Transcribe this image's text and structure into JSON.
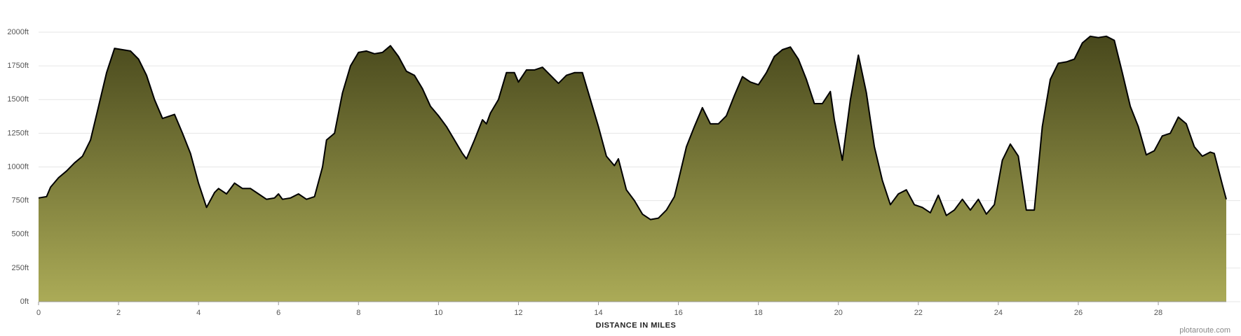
{
  "chart_data": {
    "type": "area",
    "xlabel": "DISTANCE IN MILES",
    "credit": "plotaroute.com",
    "x": [
      0,
      0.2,
      0.3,
      0.5,
      0.7,
      0.9,
      1.1,
      1.3,
      1.5,
      1.7,
      1.9,
      2.1,
      2.3,
      2.5,
      2.7,
      2.9,
      3.1,
      3.4,
      3.6,
      3.8,
      4.0,
      4.2,
      4.4,
      4.5,
      4.7,
      4.9,
      5.1,
      5.3,
      5.5,
      5.7,
      5.9,
      6.0,
      6.1,
      6.3,
      6.5,
      6.7,
      6.9,
      7.1,
      7.2,
      7.4,
      7.6,
      7.8,
      8.0,
      8.2,
      8.4,
      8.6,
      8.8,
      9.0,
      9.2,
      9.4,
      9.6,
      9.8,
      10.0,
      10.2,
      10.4,
      10.6,
      10.7,
      10.9,
      11.1,
      11.2,
      11.3,
      11.5,
      11.7,
      11.9,
      12.0,
      12.2,
      12.4,
      12.6,
      12.8,
      13.0,
      13.2,
      13.4,
      13.6,
      13.8,
      14.0,
      14.2,
      14.4,
      14.5,
      14.7,
      14.9,
      15.1,
      15.3,
      15.5,
      15.7,
      15.9,
      16.0,
      16.2,
      16.4,
      16.6,
      16.8,
      17.0,
      17.2,
      17.4,
      17.6,
      17.8,
      18.0,
      18.2,
      18.4,
      18.6,
      18.8,
      19.0,
      19.2,
      19.4,
      19.6,
      19.8,
      19.9,
      20.1,
      20.3,
      20.5,
      20.7,
      20.9,
      21.1,
      21.3,
      21.5,
      21.7,
      21.9,
      22.1,
      22.3,
      22.5,
      22.7,
      22.9,
      23.1,
      23.3,
      23.5,
      23.7,
      23.9,
      24.1,
      24.3,
      24.5,
      24.7,
      24.9,
      25.1,
      25.3,
      25.5,
      25.7,
      25.9,
      26.1,
      26.3,
      26.5,
      26.7,
      26.9,
      27.1,
      27.3,
      27.5,
      27.7,
      27.9,
      28.1,
      28.3,
      28.5,
      28.7,
      28.9,
      29.1,
      29.3,
      29.4,
      29.6,
      29.7
    ],
    "values": [
      770,
      780,
      850,
      920,
      970,
      1030,
      1080,
      1200,
      1450,
      1700,
      1880,
      1870,
      1860,
      1800,
      1680,
      1500,
      1360,
      1390,
      1250,
      1100,
      880,
      700,
      810,
      840,
      800,
      880,
      840,
      840,
      800,
      760,
      770,
      800,
      760,
      770,
      800,
      760,
      780,
      1000,
      1200,
      1250,
      1550,
      1750,
      1850,
      1860,
      1840,
      1850,
      1900,
      1820,
      1710,
      1680,
      1580,
      1450,
      1380,
      1300,
      1200,
      1100,
      1060,
      1200,
      1350,
      1320,
      1400,
      1500,
      1700,
      1700,
      1630,
      1720,
      1720,
      1740,
      1680,
      1620,
      1680,
      1700,
      1700,
      1500,
      1300,
      1080,
      1010,
      1060,
      830,
      750,
      650,
      610,
      620,
      680,
      780,
      900,
      1150,
      1300,
      1440,
      1320,
      1320,
      1380,
      1530,
      1670,
      1630,
      1610,
      1700,
      1820,
      1870,
      1890,
      1800,
      1650,
      1470,
      1470,
      1560,
      1350,
      1050,
      1500,
      1830,
      1550,
      1150,
      900,
      720,
      800,
      830,
      720,
      700,
      660,
      790,
      640,
      680,
      760,
      680,
      760,
      650,
      720,
      1050,
      1170,
      1080,
      680,
      680,
      1300,
      1650,
      1770,
      1780,
      1800,
      1920,
      1970,
      1960,
      1970,
      1940,
      1700,
      1450,
      1300,
      1090,
      1120,
      1230,
      1250,
      1370,
      1320,
      1150,
      1080,
      1110,
      1100,
      870,
      760
    ],
    "color_top": "#48481c",
    "color_bottom": "#abab57",
    "line_color": "#000000",
    "xlim": [
      0,
      29.7
    ],
    "xticks": [
      0,
      2,
      4,
      6,
      8,
      10,
      12,
      14,
      16,
      18,
      20,
      22,
      24,
      26,
      28
    ],
    "ylim": [
      0,
      2000
    ],
    "yticks": [
      {
        "value": 0,
        "label": "0ft"
      },
      {
        "value": 250,
        "label": "250ft"
      },
      {
        "value": 500,
        "label": "500ft"
      },
      {
        "value": 750,
        "label": "750ft"
      },
      {
        "value": 1000,
        "label": "1000ft"
      },
      {
        "value": 1250,
        "label": "1250ft"
      },
      {
        "value": 1500,
        "label": "1500ft"
      },
      {
        "value": 1750,
        "label": "1750ft"
      },
      {
        "value": 2000,
        "label": "2000ft"
      }
    ],
    "grid": true
  }
}
